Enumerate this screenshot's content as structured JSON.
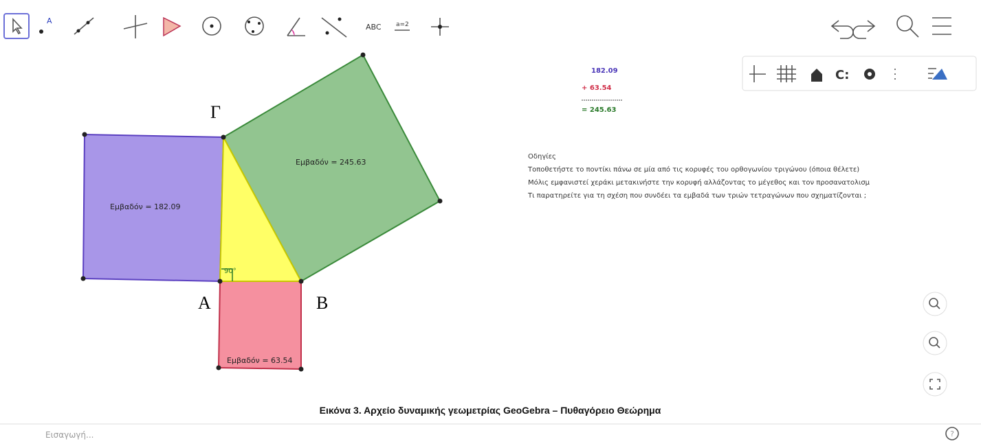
{
  "toolbar": {
    "text_tool": "ABC",
    "slider_tool": "a=2"
  },
  "canvas": {
    "vertices": {
      "gamma": "Γ",
      "a": "A",
      "b": "B"
    },
    "angle": "90°",
    "areas": {
      "purple": "Εμβαδόν = 182.09",
      "green": "Εμβαδόν = 245.63",
      "red": "Εμβαδόν = 63.54"
    },
    "sum": {
      "first": "182.09",
      "second": "+ 63.54",
      "total": "= 245.63"
    },
    "instructions": {
      "title": "Οδηγίες",
      "lines": [
        "Τοποθετήστε το ποντίκι πάνω σε μία από τις κορυφές του ορθογωνίου τριγώνου (όποια θέλετε)",
        "Μόλις εμφανιστεί χεράκι μετακινήστε την κορυφή αλλάζοντας το μέγεθος και τον προσανατολισμ",
        "Τι παρατηρείτε για τη σχέση που συνδέει τα εμβαδά των τριών τετραγώνων που σχηματίζονται ;"
      ]
    }
  },
  "caption": "Εικόνα 3. Αρχείο δυναμικής γεωμετρίας GeoGebra – Πυθαγόρειο Θεώρημα",
  "input_bar": {
    "placeholder": "Εισαγωγή..."
  }
}
